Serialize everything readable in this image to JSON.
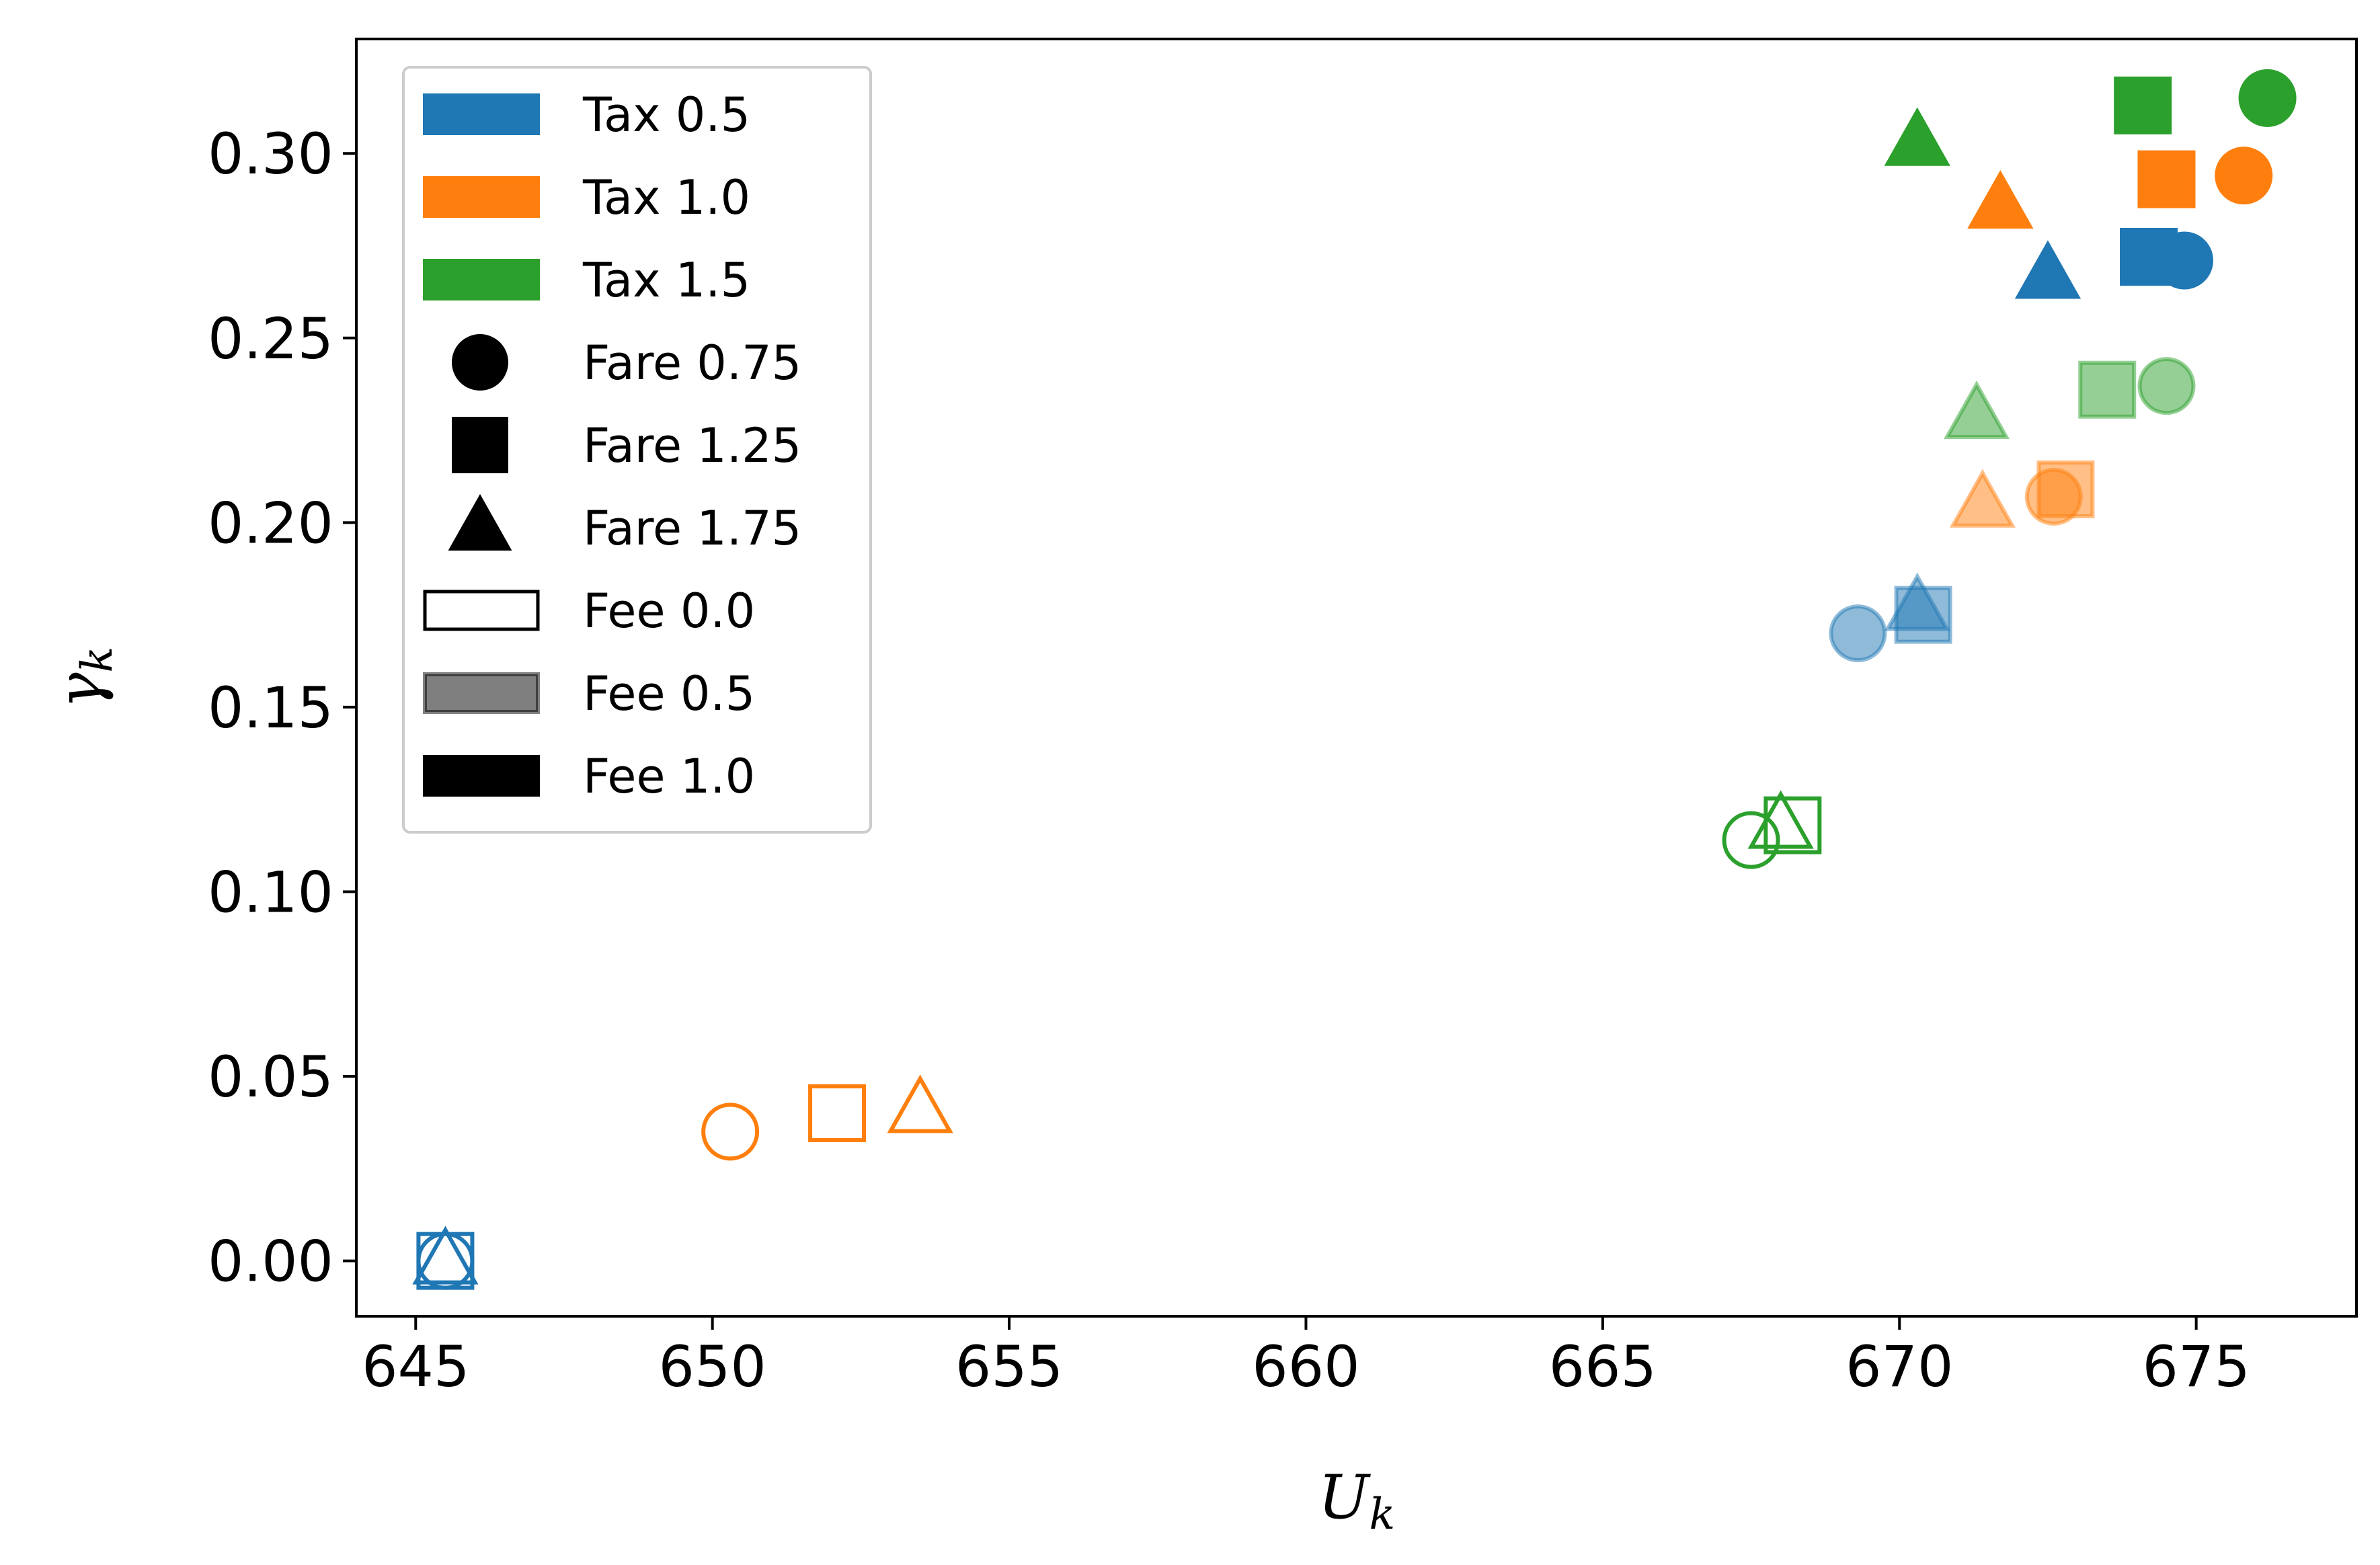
{
  "chart_data": {
    "type": "scatter",
    "title": "",
    "xlabel": "U",
    "xlabel_sub": "k",
    "ylabel": "γ",
    "ylabel_sub": "k",
    "xlim": [
      644,
      677.7
    ],
    "ylim": [
      -0.015,
      0.331
    ],
    "xticks": [
      645,
      650,
      655,
      660,
      665,
      670,
      675
    ],
    "xtick_labels": [
      "645",
      "650",
      "655",
      "660",
      "665",
      "670",
      "675"
    ],
    "yticks": [
      0.0,
      0.05,
      0.1,
      0.15,
      0.2,
      0.25,
      0.3
    ],
    "ytick_labels": [
      "0.00",
      "0.05",
      "0.10",
      "0.15",
      "0.20",
      "0.25",
      "0.30"
    ],
    "grid": false,
    "legend_position": "top-left",
    "colors": {
      "Tax 0.5": "#1f77b4",
      "Tax 1.0": "#ff7f0e",
      "Tax 1.5": "#2ca02c"
    },
    "legend": [
      {
        "label": "Tax 0.5",
        "kind": "patch",
        "color": "#1f77b4",
        "fee": "1.0"
      },
      {
        "label": "Tax 1.0",
        "kind": "patch",
        "color": "#ff7f0e",
        "fee": "1.0"
      },
      {
        "label": "Tax 1.5",
        "kind": "patch",
        "color": "#2ca02c",
        "fee": "1.0"
      },
      {
        "label": "Fare 0.75",
        "kind": "marker",
        "marker": "circle"
      },
      {
        "label": "Fare 1.25",
        "kind": "marker",
        "marker": "square"
      },
      {
        "label": "Fare 1.75",
        "kind": "marker",
        "marker": "triangle"
      },
      {
        "label": "Fee 0.0",
        "kind": "patch",
        "color": "#000000",
        "fee": "0.0"
      },
      {
        "label": "Fee 0.5",
        "kind": "patch",
        "color": "#000000",
        "fee": "0.5"
      },
      {
        "label": "Fee 1.0",
        "kind": "patch",
        "color": "#000000",
        "fee": "1.0"
      }
    ],
    "points": [
      {
        "tax": "0.5",
        "fare": "0.75",
        "fee": "0.0",
        "marker": "circle",
        "x": 645.5,
        "y": 0.0
      },
      {
        "tax": "0.5",
        "fare": "1.25",
        "fee": "0.0",
        "marker": "square",
        "x": 645.5,
        "y": 0.0
      },
      {
        "tax": "0.5",
        "fare": "1.75",
        "fee": "0.0",
        "marker": "triangle",
        "x": 645.5,
        "y": 0.0
      },
      {
        "tax": "0.5",
        "fare": "0.75",
        "fee": "0.5",
        "marker": "circle",
        "x": 669.3,
        "y": 0.17
      },
      {
        "tax": "0.5",
        "fare": "1.25",
        "fee": "0.5",
        "marker": "square",
        "x": 670.4,
        "y": 0.175
      },
      {
        "tax": "0.5",
        "fare": "1.75",
        "fee": "0.5",
        "marker": "triangle",
        "x": 670.3,
        "y": 0.177
      },
      {
        "tax": "0.5",
        "fare": "0.75",
        "fee": "1.0",
        "marker": "circle",
        "x": 674.8,
        "y": 0.271
      },
      {
        "tax": "0.5",
        "fare": "1.25",
        "fee": "1.0",
        "marker": "square",
        "x": 674.2,
        "y": 0.272
      },
      {
        "tax": "0.5",
        "fare": "1.75",
        "fee": "1.0",
        "marker": "triangle",
        "x": 672.5,
        "y": 0.267
      },
      {
        "tax": "1.0",
        "fare": "0.75",
        "fee": "0.0",
        "marker": "circle",
        "x": 650.3,
        "y": 0.035
      },
      {
        "tax": "1.0",
        "fare": "1.25",
        "fee": "0.0",
        "marker": "square",
        "x": 652.1,
        "y": 0.04
      },
      {
        "tax": "1.0",
        "fare": "1.75",
        "fee": "0.0",
        "marker": "triangle",
        "x": 653.5,
        "y": 0.041
      },
      {
        "tax": "1.0",
        "fare": "0.75",
        "fee": "0.5",
        "marker": "circle",
        "x": 672.6,
        "y": 0.207
      },
      {
        "tax": "1.0",
        "fare": "1.25",
        "fee": "0.5",
        "marker": "square",
        "x": 672.8,
        "y": 0.209
      },
      {
        "tax": "1.0",
        "fare": "1.75",
        "fee": "0.5",
        "marker": "triangle",
        "x": 671.4,
        "y": 0.205
      },
      {
        "tax": "1.0",
        "fare": "0.75",
        "fee": "1.0",
        "marker": "circle",
        "x": 675.8,
        "y": 0.294
      },
      {
        "tax": "1.0",
        "fare": "1.25",
        "fee": "1.0",
        "marker": "square",
        "x": 674.5,
        "y": 0.293
      },
      {
        "tax": "1.0",
        "fare": "1.75",
        "fee": "1.0",
        "marker": "triangle",
        "x": 671.7,
        "y": 0.286
      },
      {
        "tax": "1.5",
        "fare": "0.75",
        "fee": "0.0",
        "marker": "circle",
        "x": 667.5,
        "y": 0.114
      },
      {
        "tax": "1.5",
        "fare": "1.25",
        "fee": "0.0",
        "marker": "square",
        "x": 668.2,
        "y": 0.118
      },
      {
        "tax": "1.5",
        "fare": "1.75",
        "fee": "0.0",
        "marker": "triangle",
        "x": 668.0,
        "y": 0.118
      },
      {
        "tax": "1.5",
        "fare": "0.75",
        "fee": "0.5",
        "marker": "circle",
        "x": 674.5,
        "y": 0.237
      },
      {
        "tax": "1.5",
        "fare": "1.25",
        "fee": "0.5",
        "marker": "square",
        "x": 673.5,
        "y": 0.236
      },
      {
        "tax": "1.5",
        "fare": "1.75",
        "fee": "0.5",
        "marker": "triangle",
        "x": 671.3,
        "y": 0.229
      },
      {
        "tax": "1.5",
        "fare": "0.75",
        "fee": "1.0",
        "marker": "circle",
        "x": 676.2,
        "y": 0.315
      },
      {
        "tax": "1.5",
        "fare": "1.25",
        "fee": "1.0",
        "marker": "square",
        "x": 674.1,
        "y": 0.313
      },
      {
        "tax": "1.5",
        "fare": "1.75",
        "fee": "1.0",
        "marker": "triangle",
        "x": 670.3,
        "y": 0.303
      }
    ]
  }
}
